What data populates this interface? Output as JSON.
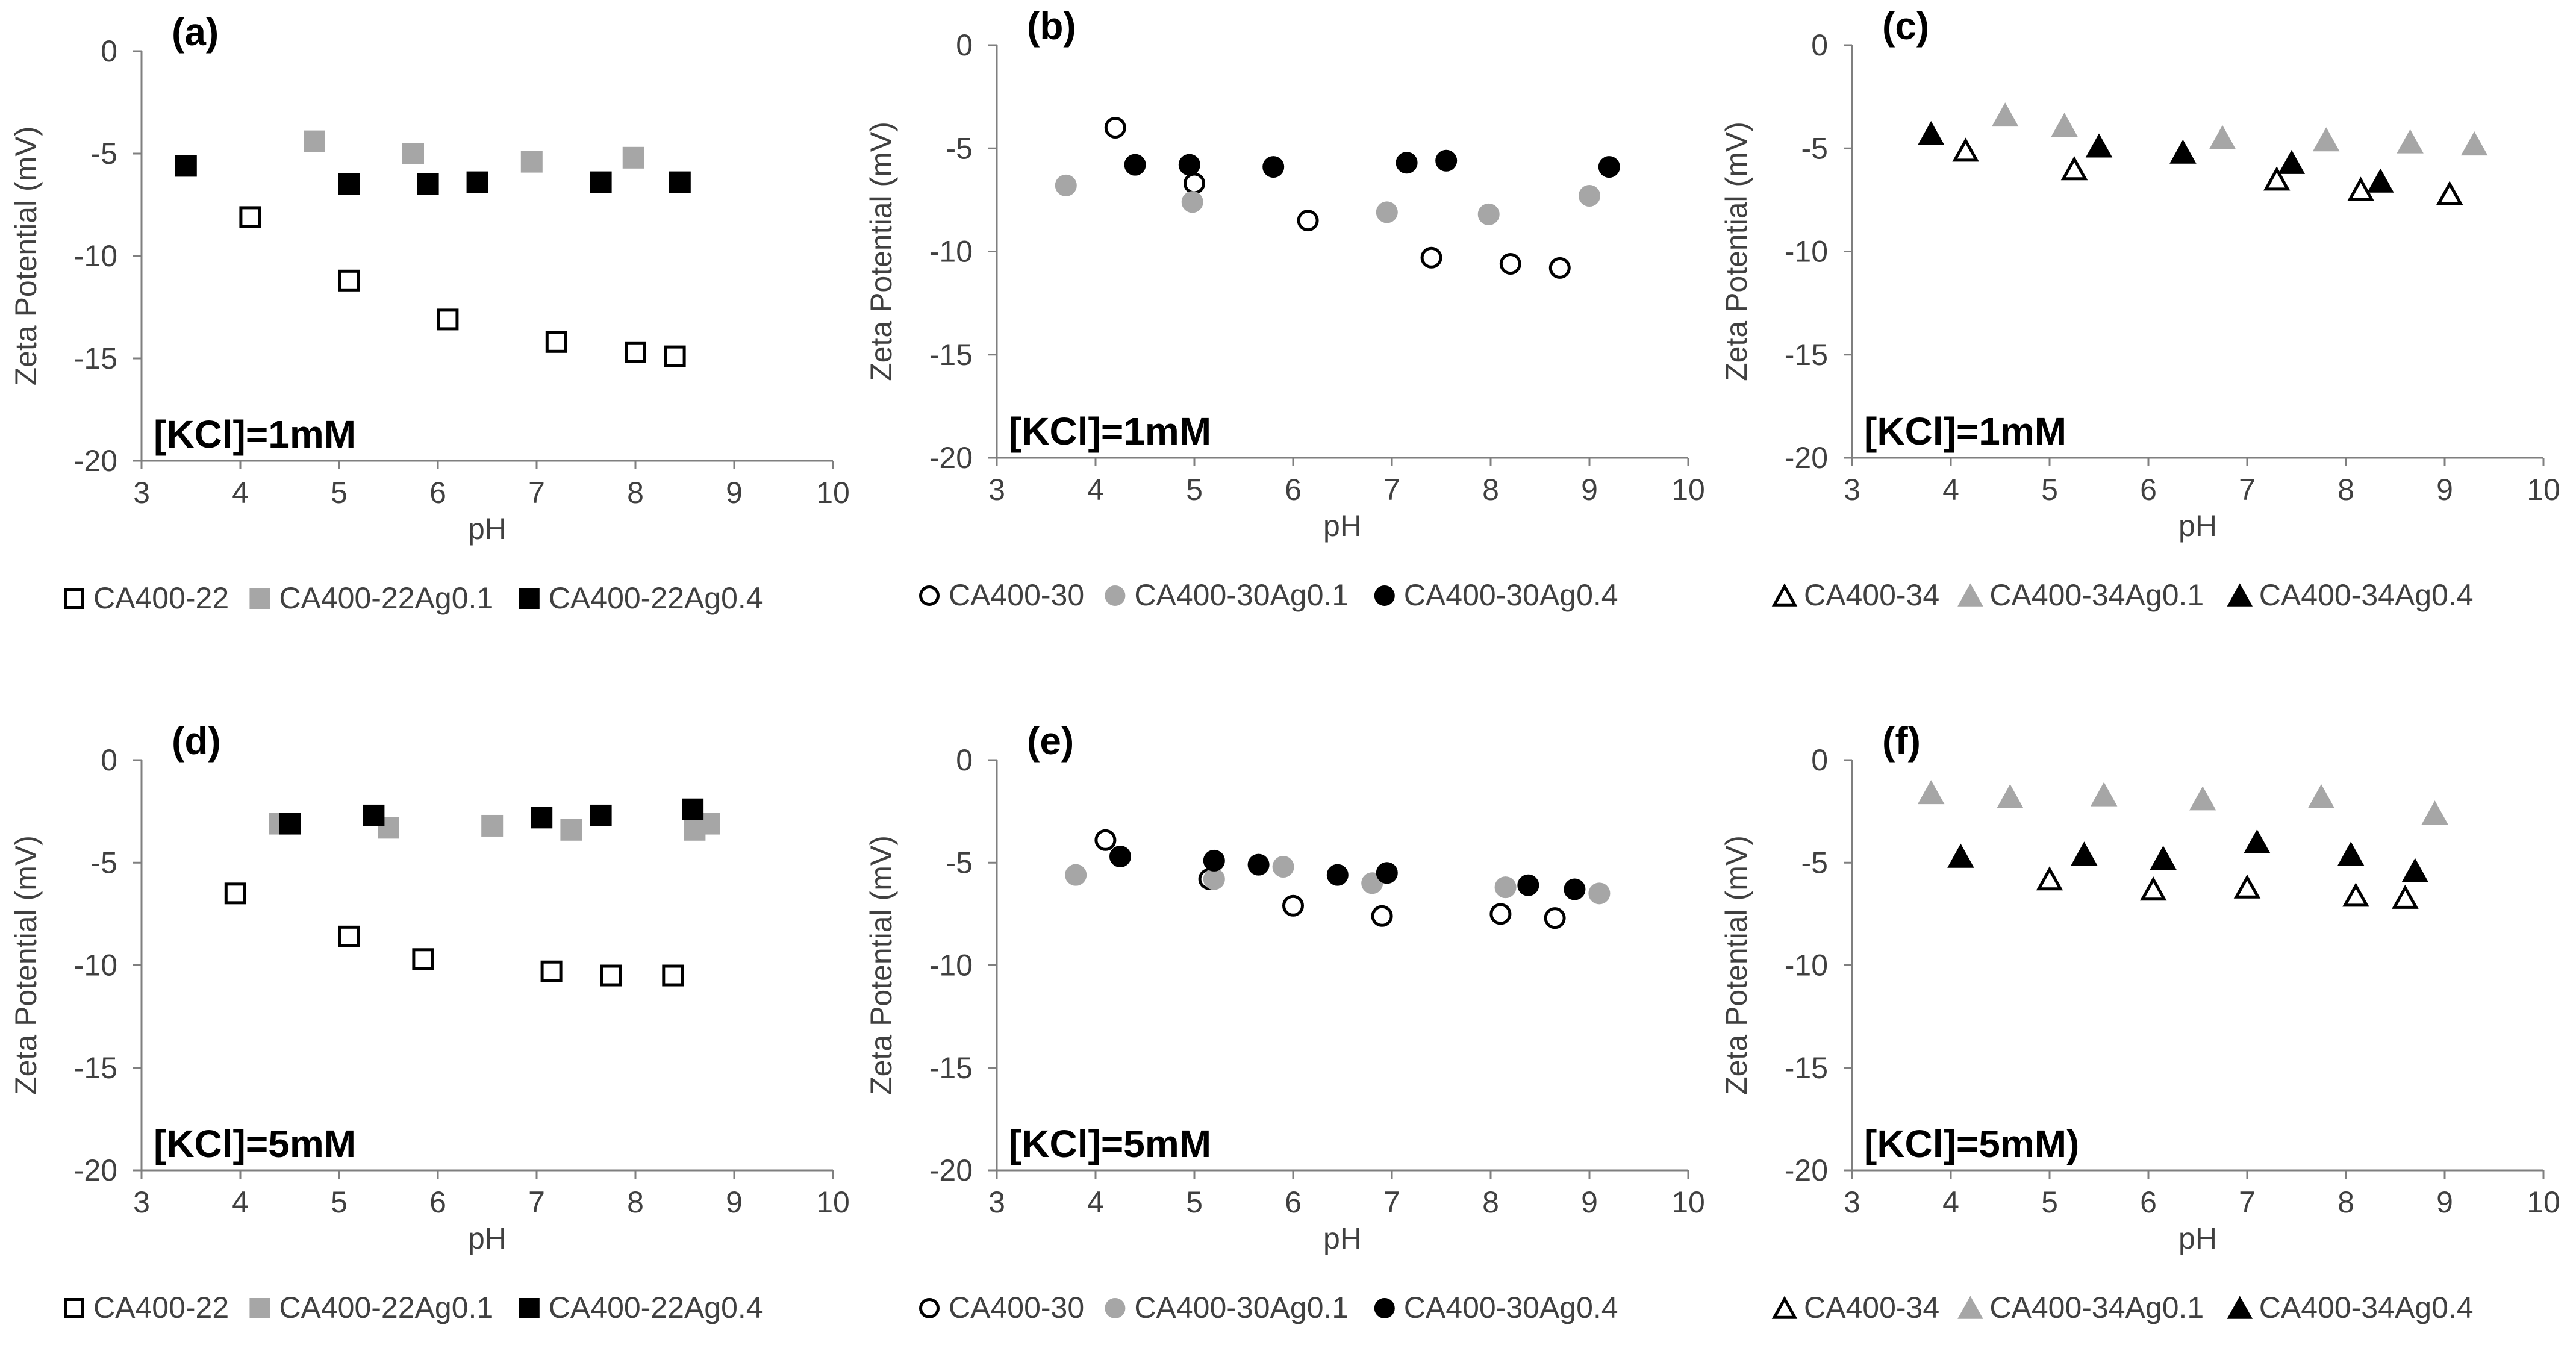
{
  "chart_data": [
    {
      "type": "scatter",
      "panel_label": "(a)",
      "annotation": "[KCl]=1mM",
      "xlabel": "pH",
      "ylabel": "Zeta Potential (mV)",
      "xlim": [
        3,
        10
      ],
      "ylim": [
        -20,
        0
      ],
      "xticks": [
        "3",
        "4",
        "5",
        "6",
        "7",
        "8",
        "9",
        "10"
      ],
      "yticks": [
        "0",
        "-5",
        "-10",
        "-15",
        "-20"
      ],
      "grid": false,
      "legend_position": "bottom",
      "series": [
        {
          "name": "CA400-22",
          "marker": "square",
          "fill": "none",
          "color": "#000000",
          "x": [
            4.1,
            5.1,
            6.1,
            7.2,
            8.0,
            8.4
          ],
          "y": [
            -8.1,
            -11.2,
            -13.1,
            -14.2,
            -14.7,
            -14.9
          ]
        },
        {
          "name": "CA400-22Ag0.1",
          "marker": "square",
          "fill": "solid",
          "color": "#a6a6a6",
          "x": [
            4.75,
            5.75,
            6.95,
            7.98
          ],
          "y": [
            -4.4,
            -5.0,
            -5.4,
            -5.2
          ]
        },
        {
          "name": "CA400-22Ag0.4",
          "marker": "square",
          "fill": "solid",
          "color": "#000000",
          "x": [
            3.45,
            5.1,
            5.9,
            6.4,
            7.65,
            8.45
          ],
          "y": [
            -5.6,
            -6.5,
            -6.5,
            -6.4,
            -6.4,
            -6.4
          ]
        }
      ]
    },
    {
      "type": "scatter",
      "panel_label": "(b)",
      "annotation": "[KCl]=1mM",
      "xlabel": "pH",
      "ylabel": "Zeta Potential (mV)",
      "xlim": [
        3,
        10
      ],
      "ylim": [
        -20,
        0
      ],
      "xticks": [
        "3",
        "4",
        "5",
        "6",
        "7",
        "8",
        "9",
        "10"
      ],
      "yticks": [
        "0",
        "-5",
        "-10",
        "-15",
        "-20"
      ],
      "grid": false,
      "legend_position": "bottom",
      "series": [
        {
          "name": "CA400-30",
          "marker": "circle",
          "fill": "none",
          "color": "#000000",
          "x": [
            4.2,
            5.0,
            6.15,
            7.4,
            8.2,
            8.7
          ],
          "y": [
            -4.0,
            -6.7,
            -8.5,
            -10.3,
            -10.6,
            -10.8
          ]
        },
        {
          "name": "CA400-30Ag0.1",
          "marker": "circle",
          "fill": "solid",
          "color": "#a6a6a6",
          "x": [
            3.7,
            4.98,
            6.95,
            7.98,
            9.0
          ],
          "y": [
            -6.8,
            -7.6,
            -8.1,
            -8.2,
            -7.3
          ]
        },
        {
          "name": "CA400-30Ag0.4",
          "marker": "circle",
          "fill": "solid",
          "color": "#000000",
          "x": [
            4.4,
            4.95,
            5.8,
            7.15,
            7.55,
            9.2
          ],
          "y": [
            -5.8,
            -5.8,
            -5.9,
            -5.7,
            -5.6,
            -5.9
          ]
        }
      ]
    },
    {
      "type": "scatter",
      "panel_label": "(c)",
      "annotation": "[KCl]=1mM",
      "xlabel": "pH",
      "ylabel": "Zeta Potential (mV)",
      "xlim": [
        3,
        10
      ],
      "ylim": [
        -20,
        0
      ],
      "xticks": [
        "3",
        "4",
        "5",
        "6",
        "7",
        "8",
        "9",
        "10"
      ],
      "yticks": [
        "0",
        "-5",
        "-10",
        "-15",
        "-20"
      ],
      "grid": false,
      "legend_position": "bottom",
      "series": [
        {
          "name": "CA400-34",
          "marker": "triangle",
          "fill": "none",
          "color": "#000000",
          "x": [
            4.15,
            5.25,
            7.3,
            8.15,
            9.05
          ],
          "y": [
            -5.1,
            -6.0,
            -6.5,
            -7.0,
            -7.2
          ]
        },
        {
          "name": "CA400-34Ag0.1",
          "marker": "triangle",
          "fill": "solid",
          "color": "#a6a6a6",
          "x": [
            4.55,
            5.15,
            6.75,
            7.8,
            8.65,
            9.3
          ],
          "y": [
            -3.4,
            -3.9,
            -4.5,
            -4.6,
            -4.7,
            -4.8
          ]
        },
        {
          "name": "CA400-34Ag0.4",
          "marker": "triangle",
          "fill": "solid",
          "color": "#000000",
          "x": [
            3.8,
            5.5,
            6.35,
            7.45,
            8.35
          ],
          "y": [
            -4.3,
            -4.9,
            -5.2,
            -5.7,
            -6.6
          ]
        }
      ]
    },
    {
      "type": "scatter",
      "panel_label": "(d)",
      "annotation": "[KCl]=5mM",
      "xlabel": "pH",
      "ylabel": "Zeta Potential (mV)",
      "xlim": [
        3,
        10
      ],
      "ylim": [
        -20,
        0
      ],
      "xticks": [
        "3",
        "4",
        "5",
        "6",
        "7",
        "8",
        "9",
        "10"
      ],
      "yticks": [
        "0",
        "-5",
        "-10",
        "-15",
        "-20"
      ],
      "grid": false,
      "legend_position": "bottom",
      "series": [
        {
          "name": "CA400-22",
          "marker": "square",
          "fill": "none",
          "color": "#000000",
          "x": [
            3.95,
            5.1,
            5.85,
            7.15,
            7.75,
            8.38
          ],
          "y": [
            -6.5,
            -8.6,
            -9.7,
            -10.3,
            -10.5,
            -10.5
          ]
        },
        {
          "name": "CA400-22Ag0.1",
          "marker": "square",
          "fill": "solid",
          "color": "#a6a6a6",
          "x": [
            4.4,
            5.5,
            6.55,
            7.35,
            8.6,
            8.75
          ],
          "y": [
            -3.1,
            -3.3,
            -3.2,
            -3.4,
            -3.4,
            -3.1
          ]
        },
        {
          "name": "CA400-22Ag0.4",
          "marker": "square",
          "fill": "solid",
          "color": "#000000",
          "x": [
            4.5,
            5.35,
            7.05,
            7.65,
            8.58
          ],
          "y": [
            -3.1,
            -2.7,
            -2.8,
            -2.7,
            -2.4
          ]
        }
      ]
    },
    {
      "type": "scatter",
      "panel_label": "(e)",
      "annotation": "[KCl]=5mM",
      "xlabel": "pH",
      "ylabel": "Zeta Potential (mV)",
      "xlim": [
        3,
        10
      ],
      "ylim": [
        -20,
        0
      ],
      "xticks": [
        "3",
        "4",
        "5",
        "6",
        "7",
        "8",
        "9",
        "10"
      ],
      "yticks": [
        "0",
        "-5",
        "-10",
        "-15",
        "-20"
      ],
      "grid": false,
      "legend_position": "bottom",
      "series": [
        {
          "name": "CA400-30",
          "marker": "circle",
          "fill": "none",
          "color": "#000000",
          "x": [
            4.1,
            5.15,
            6.0,
            6.9,
            8.1,
            8.65
          ],
          "y": [
            -3.9,
            -5.8,
            -7.1,
            -7.6,
            -7.5,
            -7.7
          ]
        },
        {
          "name": "CA400-30Ag0.1",
          "marker": "circle",
          "fill": "solid",
          "color": "#a6a6a6",
          "x": [
            3.8,
            5.2,
            5.9,
            6.8,
            8.15,
            9.1
          ],
          "y": [
            -5.6,
            -5.8,
            -5.2,
            -6.0,
            -6.2,
            -6.5
          ]
        },
        {
          "name": "CA400-30Ag0.4",
          "marker": "circle",
          "fill": "solid",
          "color": "#000000",
          "x": [
            4.25,
            5.2,
            5.65,
            6.45,
            6.95,
            8.38,
            8.85
          ],
          "y": [
            -4.7,
            -4.9,
            -5.1,
            -5.6,
            -5.5,
            -6.1,
            -6.3
          ]
        }
      ]
    },
    {
      "type": "scatter",
      "panel_label": "(f)",
      "annotation": "[KCl]=5mM)",
      "xlabel": "pH",
      "ylabel": "Zeta Potential (mV)",
      "xlim": [
        3,
        10
      ],
      "ylim": [
        -20,
        0
      ],
      "xticks": [
        "3",
        "4",
        "5",
        "6",
        "7",
        "8",
        "9",
        "10"
      ],
      "yticks": [
        "0",
        "-5",
        "-10",
        "-15",
        "-20"
      ],
      "grid": false,
      "legend_position": "bottom",
      "series": [
        {
          "name": "CA400-34",
          "marker": "triangle",
          "fill": "none",
          "color": "#000000",
          "x": [
            5.0,
            6.05,
            7.0,
            8.1,
            8.6
          ],
          "y": [
            -5.8,
            -6.3,
            -6.2,
            -6.6,
            -6.7
          ]
        },
        {
          "name": "CA400-34Ag0.1",
          "marker": "triangle",
          "fill": "solid",
          "color": "#a6a6a6",
          "x": [
            3.8,
            4.6,
            5.55,
            6.55,
            7.75,
            8.9
          ],
          "y": [
            -1.6,
            -1.8,
            -1.7,
            -1.9,
            -1.8,
            -2.6
          ]
        },
        {
          "name": "CA400-34Ag0.4",
          "marker": "triangle",
          "fill": "solid",
          "color": "#000000",
          "x": [
            4.1,
            5.35,
            6.15,
            7.1,
            8.05,
            8.7
          ],
          "y": [
            -4.7,
            -4.6,
            -4.8,
            -4.0,
            -4.6,
            -5.4
          ]
        }
      ]
    }
  ]
}
